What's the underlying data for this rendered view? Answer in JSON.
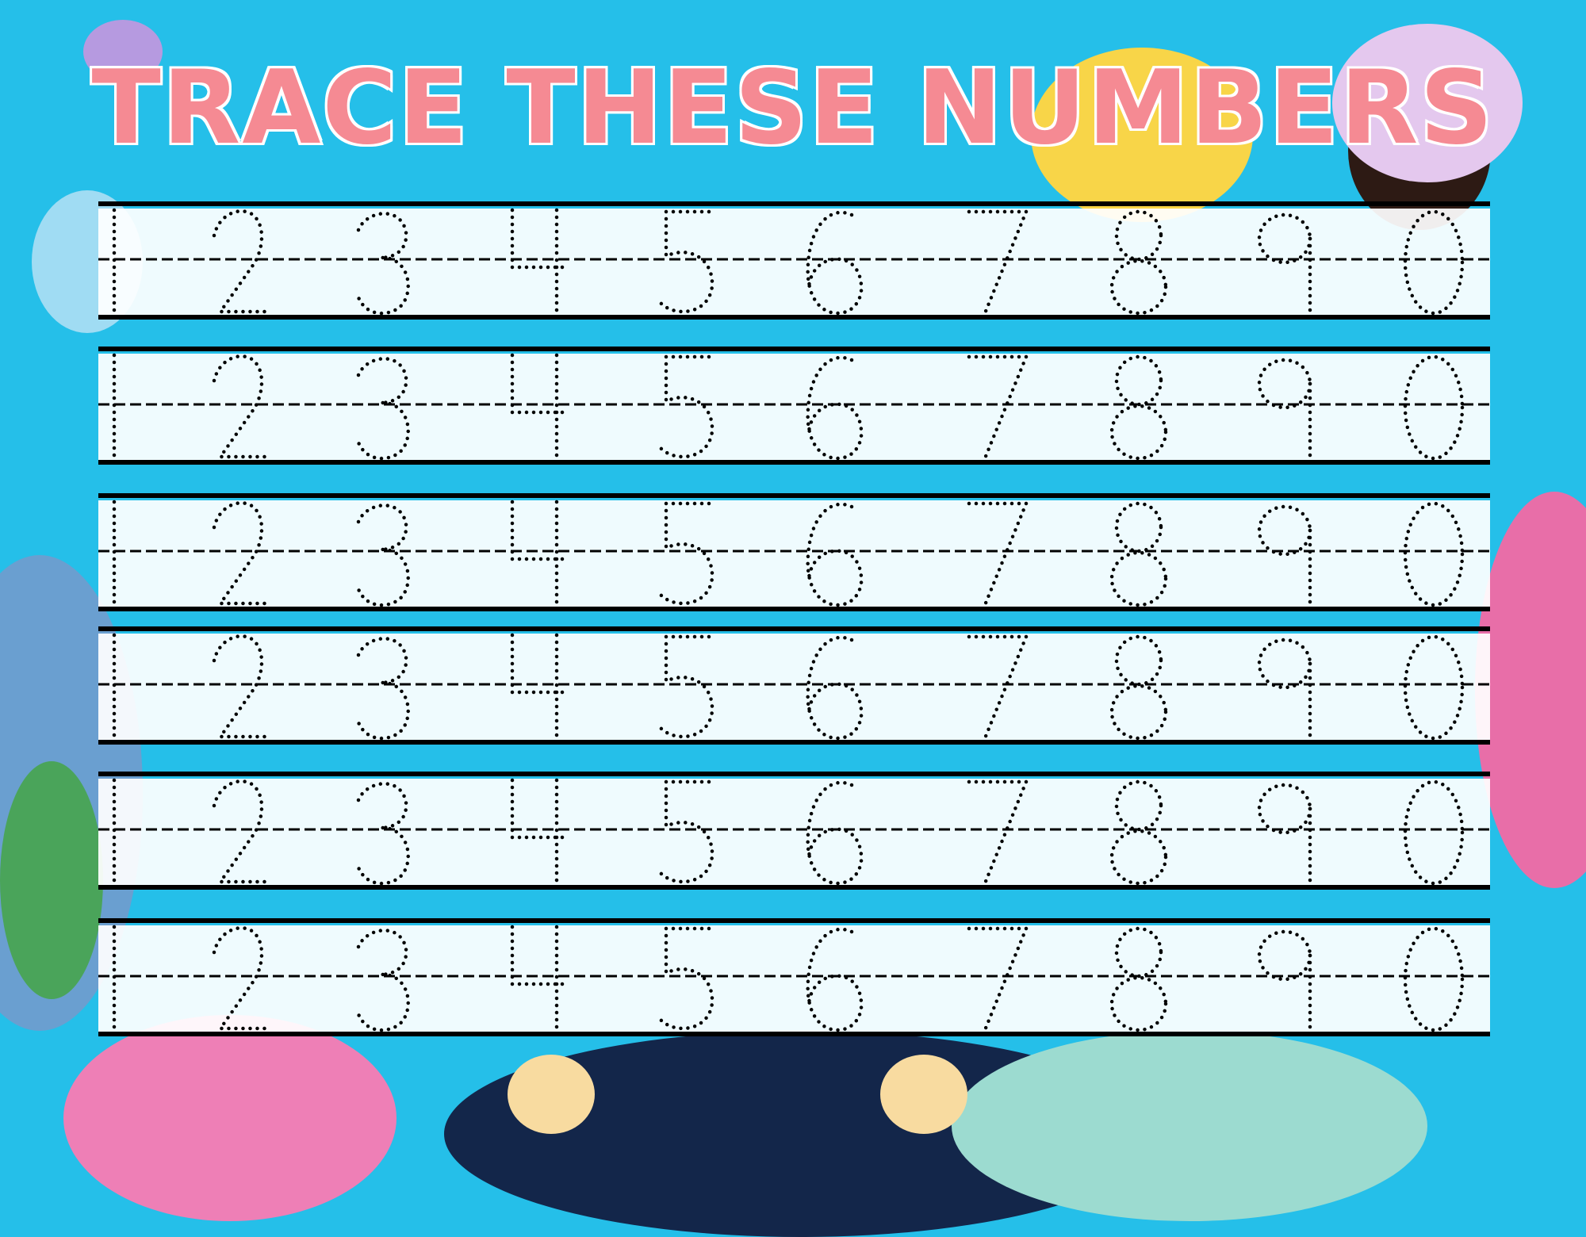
{
  "title": "TRACE THESE NUMBERS",
  "digits": [
    "1",
    "2",
    "3",
    "4",
    "5",
    "6",
    "7",
    "8",
    "9",
    "0"
  ],
  "row_count": 6,
  "colors": {
    "background": "#25bfe9",
    "title": "#f58a93",
    "title_outline": "#ffffff",
    "row_band": "#ffffff",
    "ink": "#000000"
  }
}
